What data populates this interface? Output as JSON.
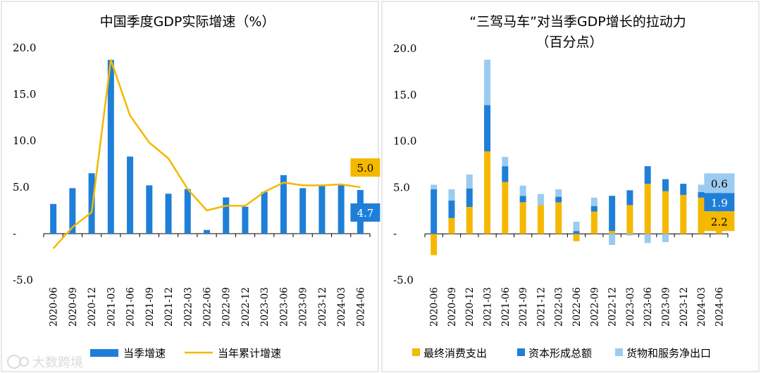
{
  "colors": {
    "blue": "#1F7FD8",
    "yellow": "#F5B800",
    "lightblue": "#9BCBF1",
    "axis": "#000000",
    "border": "#d0d0d0"
  },
  "watermark": "大数跨境",
  "chart_data": [
    {
      "type": "bar+line",
      "title": "中国季度GDP实际增速（%）",
      "categories": [
        "2020-06",
        "2020-09",
        "2020-12",
        "2021-03",
        "2021-06",
        "2021-09",
        "2021-12",
        "2022-03",
        "2022-06",
        "2022-09",
        "2022-12",
        "2023-03",
        "2023-06",
        "2023-09",
        "2023-12",
        "2024-03",
        "2024-06"
      ],
      "ylim": [
        -5,
        20
      ],
      "yticks": [
        -5,
        0,
        5,
        10,
        15,
        20
      ],
      "ytick_labels": [
        "-5.0",
        "-",
        "5.0",
        "10.0",
        "15.0",
        "20.0"
      ],
      "series": [
        {
          "name": "当季增速",
          "kind": "bar",
          "values": [
            3.2,
            4.9,
            6.5,
            18.7,
            8.3,
            5.2,
            4.3,
            4.8,
            0.4,
            3.9,
            2.9,
            4.5,
            6.3,
            4.9,
            5.2,
            5.3,
            4.7
          ]
        },
        {
          "name": "当年累计增速",
          "kind": "line",
          "values": [
            -1.6,
            0.7,
            2.3,
            18.7,
            12.7,
            9.8,
            8.1,
            4.8,
            2.5,
            3.0,
            3.0,
            4.5,
            5.5,
            5.2,
            5.2,
            5.3,
            5.0
          ]
        }
      ],
      "annotations": [
        {
          "label": "5.0",
          "series": "当年累计增速"
        },
        {
          "label": "4.7",
          "series": "当季增速"
        }
      ]
    },
    {
      "type": "stacked-bar",
      "title_line1": "“三驾马车”对当季GDP增长的拉动力",
      "title_line2": "（百分点）",
      "categories": [
        "2020-06",
        "2020-09",
        "2020-12",
        "2021-03",
        "2021-06",
        "2021-09",
        "2021-12",
        "2022-03",
        "2022-06",
        "2022-09",
        "2022-12",
        "2023-03",
        "2023-06",
        "2023-09",
        "2023-12",
        "2024-03",
        "2024-06"
      ],
      "ylim": [
        -5,
        20
      ],
      "yticks": [
        -5,
        0,
        5,
        10,
        15,
        20
      ],
      "ytick_labels": [
        "-5.0",
        "-",
        "5.0",
        "10.0",
        "15.0",
        "20.0"
      ],
      "series": [
        {
          "name": "最终消费支出",
          "values": [
            -2.3,
            1.7,
            2.9,
            8.9,
            5.6,
            3.4,
            3.1,
            3.4,
            -0.8,
            2.4,
            0.3,
            3.1,
            5.4,
            4.6,
            4.2,
            3.9,
            2.2
          ]
        },
        {
          "name": "资本形成总额",
          "values": [
            4.8,
            1.9,
            2.0,
            5.0,
            1.7,
            0.7,
            0.0,
            0.6,
            0.3,
            0.6,
            3.8,
            1.6,
            1.9,
            1.3,
            1.2,
            0.6,
            1.9
          ]
        },
        {
          "name": "货物和服务净出口",
          "values": [
            0.5,
            1.2,
            1.5,
            4.9,
            1.0,
            1.1,
            1.2,
            0.8,
            1.0,
            0.9,
            -1.2,
            -0.2,
            -1.0,
            -0.9,
            0.0,
            0.8,
            0.6
          ]
        }
      ],
      "annotations": [
        {
          "label": "0.6",
          "series": "货物和服务净出口"
        },
        {
          "label": "1.9",
          "series": "资本形成总额"
        },
        {
          "label": "2.2",
          "series": "最终消费支出"
        }
      ]
    }
  ]
}
